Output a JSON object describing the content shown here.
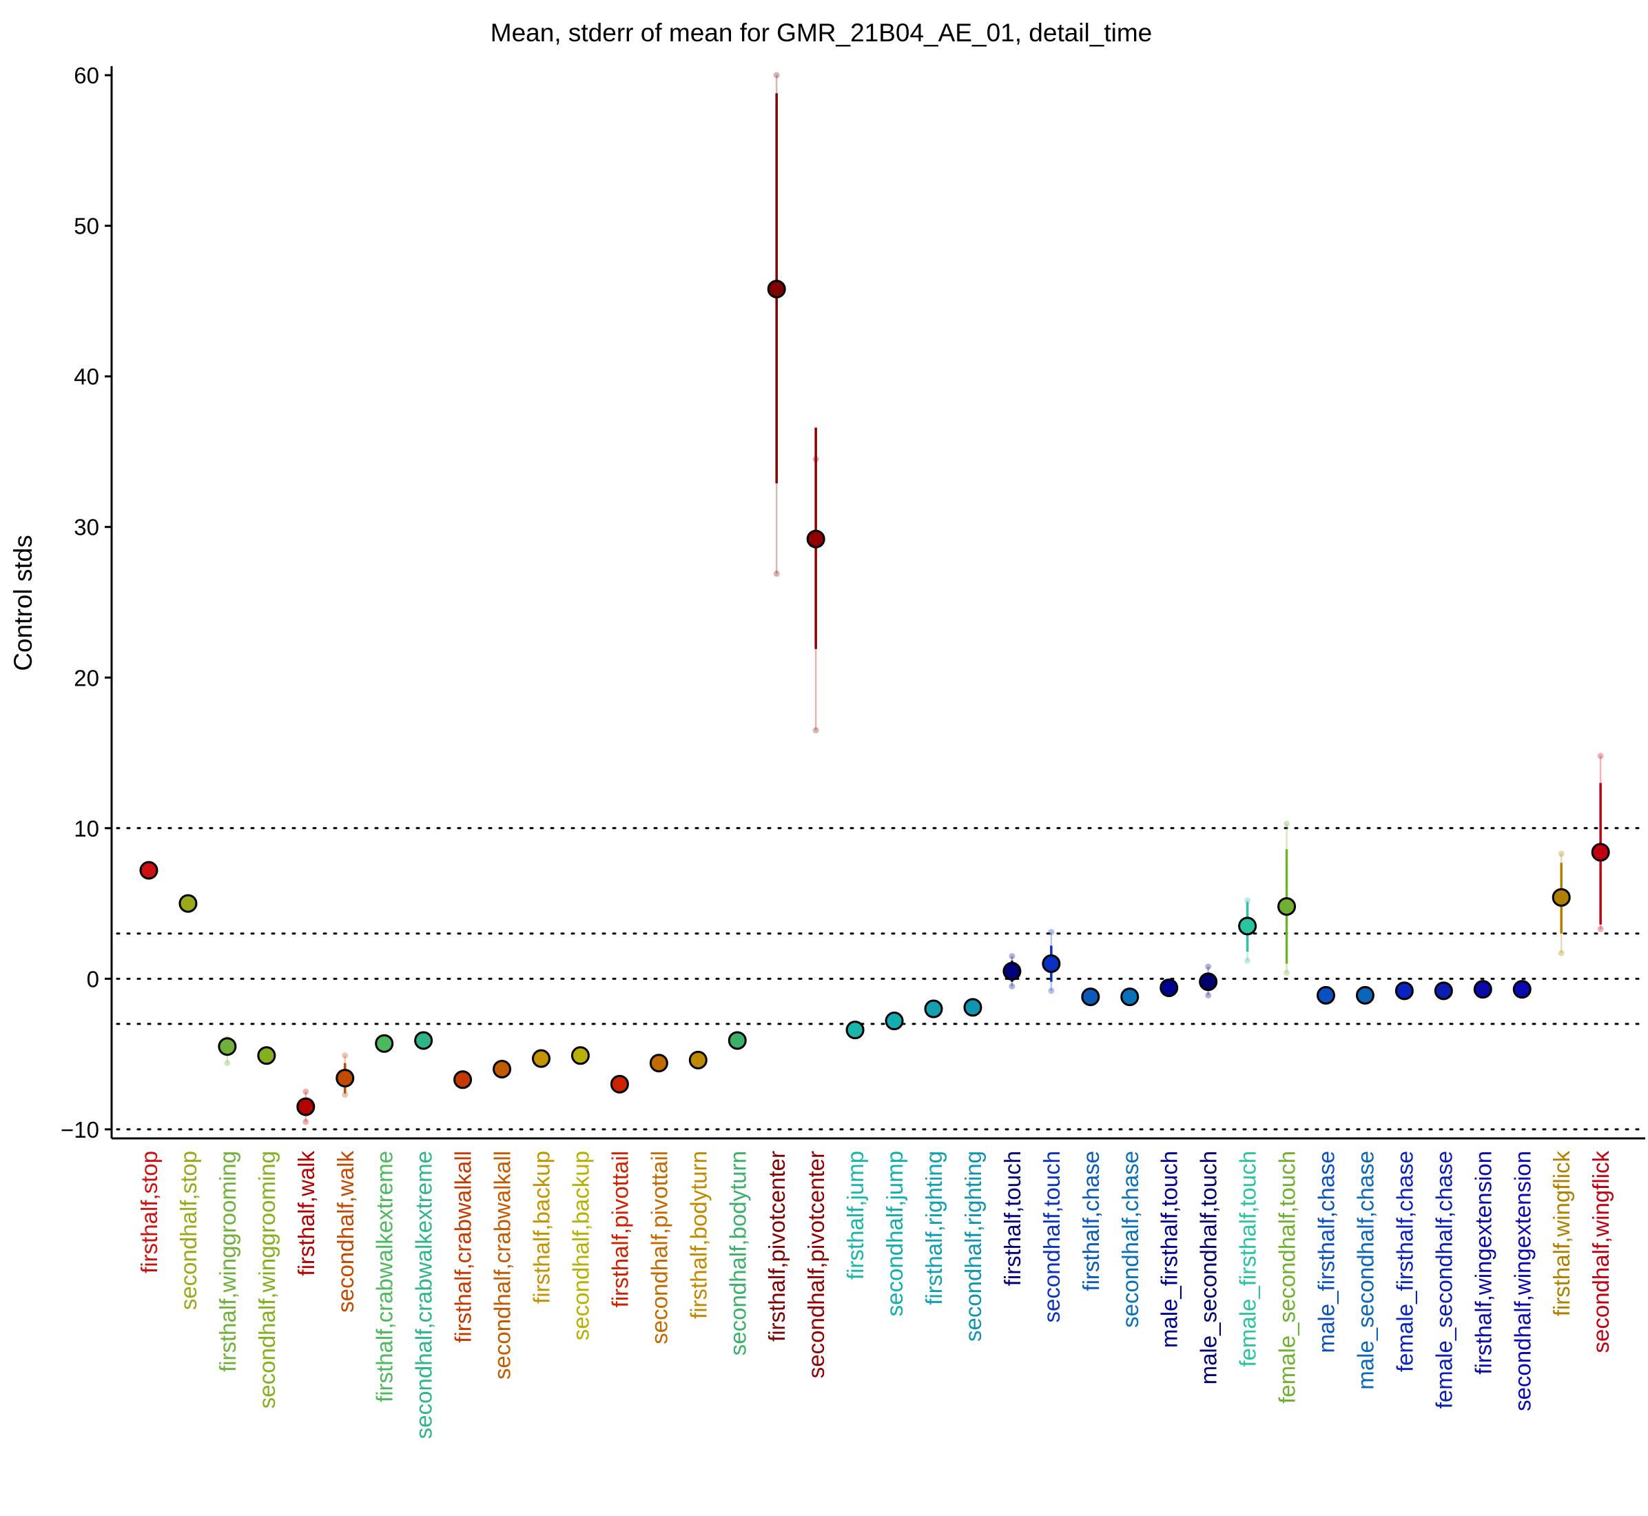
{
  "chart_data": {
    "type": "scatter",
    "title": "Mean, stderr of mean for GMR_21B04_AE_01, detail_time",
    "xlabel": "",
    "ylabel": "Control stds",
    "ylim": [
      -10.6,
      60.6
    ],
    "yticks": [
      -10,
      0,
      10,
      20,
      30,
      40,
      50,
      60
    ],
    "ytick_labels": [
      "−10",
      "0",
      "10",
      "20",
      "30",
      "40",
      "50",
      "60"
    ],
    "reference_lines": [
      -10,
      -3,
      0,
      3,
      10
    ],
    "grid": false,
    "legend": "none",
    "categories": [
      "firsthalf,stop",
      "secondhalf,stop",
      "firsthalf,winggrooming",
      "secondhalf,winggrooming",
      "firsthalf,walk",
      "secondhalf,walk",
      "firsthalf,crabwalkextreme",
      "secondhalf,crabwalkextreme",
      "firsthalf,crabwalkall",
      "secondhalf,crabwalkall",
      "firsthalf,backup",
      "secondhalf,backup",
      "firsthalf,pivottail",
      "secondhalf,pivottail",
      "firsthalf,bodyturn",
      "secondhalf,bodyturn",
      "firsthalf,pivotcenter",
      "secondhalf,pivotcenter",
      "firsthalf,jump",
      "secondhalf,jump",
      "firsthalf,righting",
      "secondhalf,righting",
      "firsthalf,touch",
      "secondhalf,touch",
      "firsthalf,chase",
      "secondhalf,chase",
      "male_firsthalf,touch",
      "male_secondhalf,touch",
      "female_firsthalf,touch",
      "female_secondhalf,touch",
      "male_firsthalf,chase",
      "male_secondhalf,chase",
      "female_firsthalf,chase",
      "female_secondhalf,chase",
      "firsthalf,wingextension",
      "secondhalf,wingextension",
      "firsthalf,wingflick",
      "secondhalf,wingflick"
    ],
    "series": [
      {
        "values": [
          7.2,
          5.0,
          -4.5,
          -5.1,
          -8.5,
          -6.6,
          -4.3,
          -4.1,
          -6.7,
          -6.0,
          -5.3,
          -5.1,
          -7.0,
          -5.6,
          -5.4,
          -4.1,
          45.8,
          29.2,
          -3.4,
          -2.8,
          -2.0,
          -1.9,
          0.5,
          1.0,
          -1.2,
          -1.2,
          -0.6,
          -0.2,
          3.5,
          4.8,
          -1.1,
          -1.1,
          -0.8,
          -0.8,
          -0.7,
          -0.7,
          5.4,
          8.4
        ],
        "stderr_low": [
          7.2,
          5.0,
          -4.9,
          -5.1,
          -9.0,
          -7.6,
          -4.3,
          -4.1,
          -6.7,
          -6.0,
          -5.3,
          -5.1,
          -7.0,
          -5.6,
          -5.4,
          -4.1,
          32.9,
          21.9,
          -3.4,
          -2.8,
          -2.0,
          -1.9,
          -0.2,
          -0.2,
          -1.2,
          -1.2,
          -0.9,
          -0.7,
          1.8,
          1.0,
          -1.1,
          -1.1,
          -0.8,
          -0.8,
          -0.7,
          -0.7,
          3.0,
          3.6
        ],
        "stderr_high": [
          7.2,
          5.0,
          -4.0,
          -5.1,
          -7.9,
          -5.6,
          -4.3,
          -4.1,
          -6.7,
          -6.0,
          -5.3,
          -5.1,
          -7.0,
          -5.6,
          -5.4,
          -4.1,
          58.8,
          36.6,
          -3.4,
          -2.8,
          -2.0,
          -1.9,
          1.2,
          2.2,
          -1.2,
          -1.2,
          -0.3,
          0.4,
          5.1,
          8.6,
          -1.1,
          -1.1,
          -0.8,
          -0.8,
          -0.7,
          -0.7,
          7.7,
          13.0
        ],
        "points_low": [
          7.2,
          5.0,
          -5.6,
          -5.1,
          -9.5,
          -7.7,
          -4.3,
          -4.1,
          -6.7,
          -6.0,
          -5.3,
          -5.1,
          -7.0,
          -5.6,
          -5.4,
          -4.1,
          26.9,
          16.5,
          -3.4,
          -2.8,
          -2.0,
          -1.9,
          -0.5,
          -0.8,
          -1.2,
          -1.2,
          -0.9,
          -1.1,
          1.2,
          0.4,
          -1.1,
          -1.1,
          -0.8,
          -0.8,
          -0.7,
          -0.7,
          1.7,
          3.3
        ],
        "points_high": [
          7.2,
          5.0,
          -4.0,
          -5.1,
          -7.5,
          -5.1,
          -4.3,
          -4.1,
          -6.7,
          -6.0,
          -5.3,
          -5.1,
          -7.0,
          -5.6,
          -5.4,
          -4.1,
          60.0,
          34.5,
          -3.4,
          -2.8,
          -2.0,
          -1.9,
          1.5,
          3.1,
          -1.2,
          -1.2,
          -0.3,
          0.8,
          5.2,
          10.3,
          -1.1,
          -1.1,
          -0.8,
          -0.8,
          -0.7,
          -0.7,
          8.3,
          14.8
        ]
      }
    ],
    "colors": [
      "#cc1111",
      "#9aa81a",
      "#6fb13a",
      "#85b01e",
      "#b30000",
      "#c24a00",
      "#4db85c",
      "#2fb58a",
      "#c23a00",
      "#c25a00",
      "#c49400",
      "#b8b000",
      "#cc2200",
      "#c26a00",
      "#c08a00",
      "#3cb06a",
      "#800000",
      "#900000",
      "#1ab5aa",
      "#12adb0",
      "#12a0b0",
      "#1095b0",
      "#00007a",
      "#0a32c0",
      "#0a5ab8",
      "#0a70b8",
      "#000090",
      "#00006e",
      "#2ac4a0",
      "#70b030",
      "#0a50c0",
      "#0a66b8",
      "#0a22c0",
      "#0a1eb0",
      "#0a0aa8",
      "#0a0ab0",
      "#b08000",
      "#c00010"
    ]
  }
}
